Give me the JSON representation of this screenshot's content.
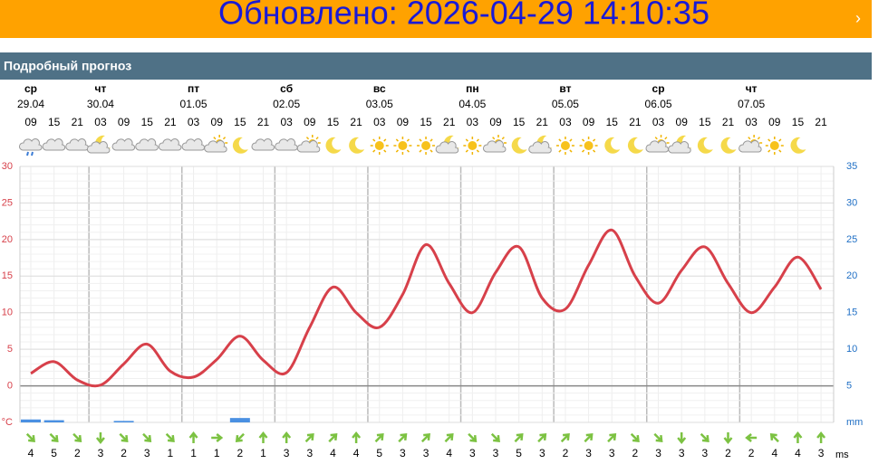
{
  "banner": {
    "text": "Обновлено: 2026-04-29 14:10:35"
  },
  "section_title": "Подробный прогноз",
  "days": [
    {
      "name": "ср",
      "date": "29.04",
      "start": 0
    },
    {
      "name": "чт",
      "date": "30.04",
      "start": 3
    },
    {
      "name": "пт",
      "date": "01.05",
      "start": 7
    },
    {
      "name": "сб",
      "date": "02.05",
      "start": 11
    },
    {
      "name": "вс",
      "date": "03.05",
      "start": 15
    },
    {
      "name": "пн",
      "date": "04.05",
      "start": 19
    },
    {
      "name": "вт",
      "date": "05.05",
      "start": 23
    },
    {
      "name": "ср",
      "date": "06.05",
      "start": 27
    },
    {
      "name": "чт",
      "date": "07.05",
      "start": 31
    }
  ],
  "hours": [
    "09",
    "15",
    "21",
    "03",
    "09",
    "15",
    "21",
    "03",
    "09",
    "15",
    "21",
    "03",
    "09",
    "15",
    "21",
    "03",
    "09",
    "15",
    "21",
    "03",
    "09",
    "15",
    "21",
    "03",
    "09",
    "15",
    "21",
    "03",
    "09",
    "15",
    "21",
    "03",
    "09",
    "15",
    "21"
  ],
  "chart_data": {
    "type": "line",
    "series": [
      {
        "type": "line",
        "color": "#d7404a",
        "values": [
          1.7,
          3.3,
          0.8,
          0.1,
          3.0,
          5.7,
          2.0,
          1.2,
          3.6,
          6.8,
          3.5,
          1.8,
          8.0,
          13.5,
          10.0,
          8.0,
          12.5,
          19.3,
          14.0,
          10.0,
          15.5,
          19.0,
          12.0,
          10.5,
          16.5,
          21.3,
          15.0,
          11.3,
          15.8,
          19.0,
          14.0,
          10.0,
          13.5,
          17.6,
          13.2
        ]
      },
      {
        "type": "bar",
        "axis": "y2",
        "color": "#4a90e2",
        "values": [
          0.4,
          0.3,
          0,
          0,
          0.2,
          0,
          0,
          0,
          0,
          0.6,
          0,
          0,
          0,
          0,
          0,
          0,
          0,
          0,
          0,
          0,
          0,
          0,
          0,
          0,
          0,
          0,
          0,
          0,
          0,
          0,
          0,
          0,
          0,
          0,
          0
        ]
      }
    ],
    "ylim": [
      -5,
      30
    ],
    "yticks": [
      {
        "value": -5,
        "label": "°C"
      },
      0,
      5,
      10,
      15,
      20,
      25,
      30
    ],
    "y2lim": [
      0,
      35
    ],
    "y2ticks": [
      {
        "value": 0,
        "label": "mm"
      },
      5,
      10,
      15,
      20,
      25,
      30,
      35
    ]
  },
  "wind": {
    "unit": "ms",
    "values": [
      4,
      5,
      2,
      3,
      2,
      3,
      1,
      1,
      1,
      2,
      1,
      3,
      3,
      4,
      4,
      5,
      3,
      3,
      4,
      3,
      3,
      5,
      3,
      2,
      3,
      3,
      2,
      3,
      3,
      3,
      2,
      2,
      4,
      4,
      3
    ]
  }
}
